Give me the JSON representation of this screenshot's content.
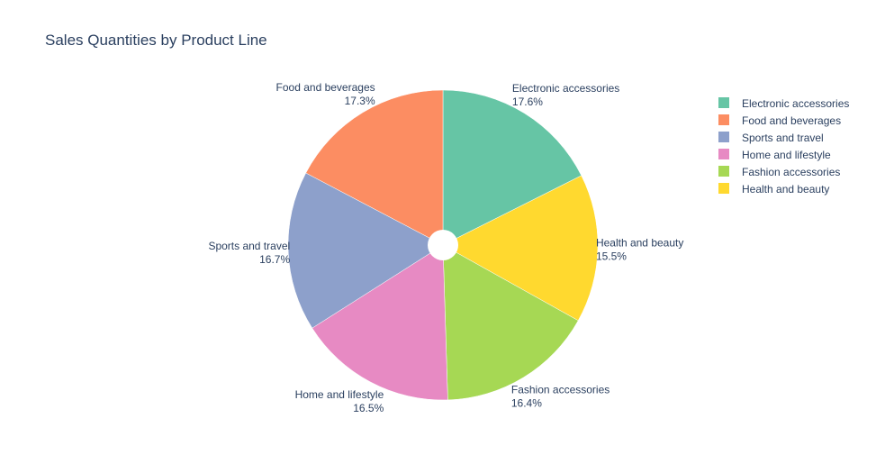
{
  "chart_data": {
    "type": "pie",
    "title": "Sales Quantities by Product Line",
    "hole": true,
    "legend_position": "top-right",
    "slices": [
      {
        "label": "Electronic accessories",
        "percent_text": "17.6%",
        "value": 17.6,
        "color": "#66c5a5"
      },
      {
        "label": "Health and beauty",
        "percent_text": "15.5%",
        "value": 15.5,
        "color": "#ffd92f"
      },
      {
        "label": "Fashion accessories",
        "percent_text": "16.4%",
        "value": 16.4,
        "color": "#a6d854"
      },
      {
        "label": "Home and lifestyle",
        "percent_text": "16.5%",
        "value": 16.5,
        "color": "#e78ac3"
      },
      {
        "label": "Sports and travel",
        "percent_text": "16.7%",
        "value": 16.7,
        "color": "#8da0cb"
      },
      {
        "label": "Food and beverages",
        "percent_text": "17.3%",
        "value": 17.3,
        "color": "#fc8d62"
      }
    ],
    "legend_order": [
      "Electronic accessories",
      "Food and beverages",
      "Sports and travel",
      "Home and lifestyle",
      "Fashion accessories",
      "Health and beauty"
    ]
  }
}
